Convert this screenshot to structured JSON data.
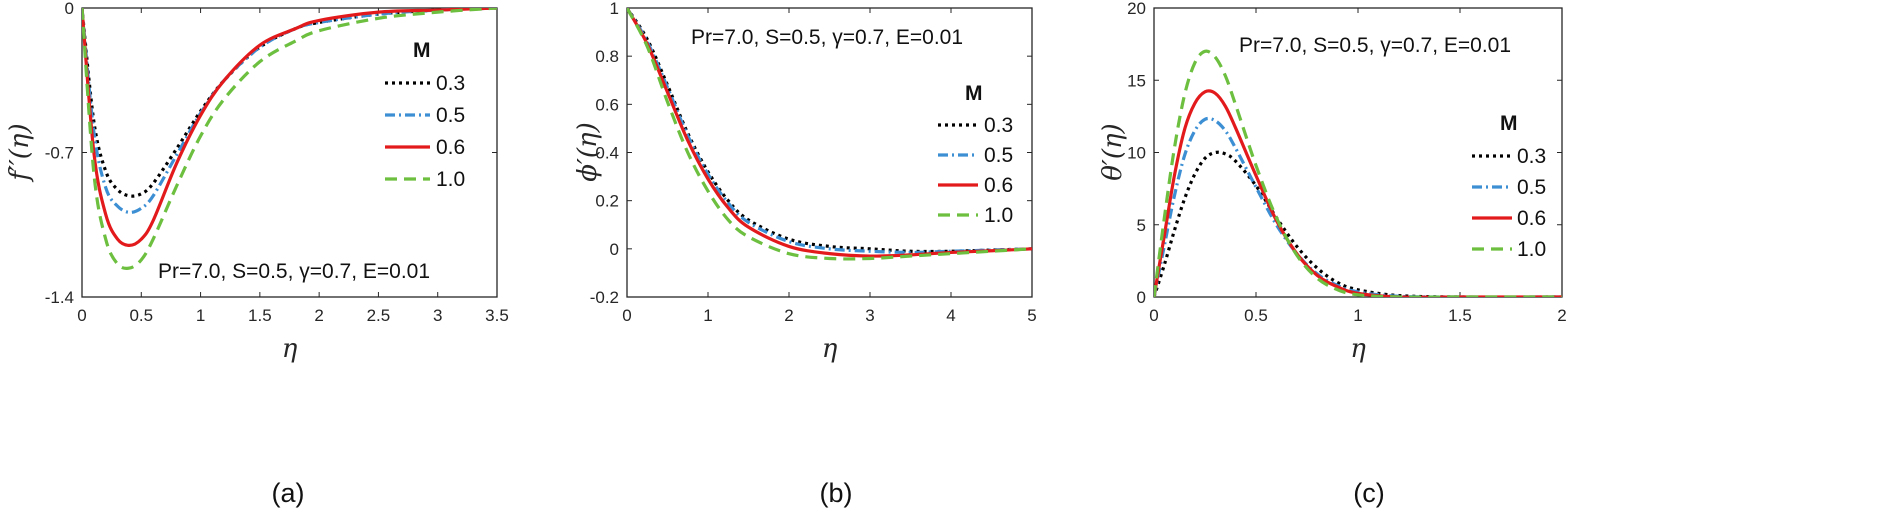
{
  "chart_data": [
    {
      "type": "line",
      "panel_label": "(a)",
      "xlabel": "η",
      "ylabel": "f′′(η)",
      "xlim": [
        0,
        3.5
      ],
      "ylim": [
        -1.4,
        0
      ],
      "xticks": [
        "0",
        "0.5",
        "1",
        "1.5",
        "2",
        "2.5",
        "3",
        "3.5"
      ],
      "yticks": [
        "0",
        "-0.7",
        "-1.4"
      ],
      "annotation": "Pr=7.0, S=0.5, γ=0.7, E=0.01",
      "legend_title": "M",
      "series": [
        {
          "name": "0.3",
          "x": [
            0,
            0.1,
            0.2,
            0.3,
            0.4,
            0.5,
            0.6,
            0.8,
            1.0,
            1.2,
            1.5,
            1.8,
            2.0,
            2.5,
            3.0,
            3.5
          ],
          "values": [
            0,
            -0.55,
            -0.79,
            -0.88,
            -0.91,
            -0.9,
            -0.85,
            -0.68,
            -0.5,
            -0.35,
            -0.19,
            -0.1,
            -0.07,
            -0.03,
            -0.01,
            0
          ]
        },
        {
          "name": "0.5",
          "x": [
            0,
            0.1,
            0.2,
            0.3,
            0.4,
            0.5,
            0.6,
            0.8,
            1.0,
            1.2,
            1.5,
            1.8,
            2.0,
            2.5,
            3.0,
            3.5
          ],
          "values": [
            0,
            -0.6,
            -0.87,
            -0.96,
            -0.99,
            -0.97,
            -0.91,
            -0.71,
            -0.51,
            -0.35,
            -0.19,
            -0.1,
            -0.07,
            -0.03,
            -0.01,
            0
          ]
        },
        {
          "name": "0.6",
          "x": [
            0,
            0.1,
            0.2,
            0.3,
            0.4,
            0.5,
            0.6,
            0.8,
            1.0,
            1.2,
            1.5,
            1.8,
            2.0,
            2.5,
            3.0,
            3.5
          ],
          "values": [
            0,
            -0.7,
            -1.0,
            -1.12,
            -1.15,
            -1.12,
            -1.03,
            -0.75,
            -0.52,
            -0.35,
            -0.18,
            -0.1,
            -0.06,
            -0.02,
            -0.01,
            0
          ]
        },
        {
          "name": "1.0",
          "x": [
            0,
            0.1,
            0.2,
            0.3,
            0.4,
            0.5,
            0.6,
            0.8,
            1.0,
            1.2,
            1.5,
            1.8,
            2.0,
            2.5,
            3.0,
            3.5
          ],
          "values": [
            0,
            -0.8,
            -1.12,
            -1.24,
            -1.26,
            -1.22,
            -1.12,
            -0.86,
            -0.62,
            -0.44,
            -0.26,
            -0.16,
            -0.11,
            -0.05,
            -0.02,
            0
          ]
        }
      ]
    },
    {
      "type": "line",
      "panel_label": "(b)",
      "xlabel": "η",
      "ylabel": "ϕ′(η)",
      "xlim": [
        0,
        5
      ],
      "ylim": [
        -0.2,
        1
      ],
      "xticks": [
        "0",
        "1",
        "2",
        "3",
        "4",
        "5"
      ],
      "yticks": [
        "-0.2",
        "0",
        "0.2",
        "0.4",
        "0.6",
        "0.8",
        "1"
      ],
      "annotation": "Pr=7.0, S=0.5, γ=0.7, E=0.01",
      "legend_title": "M",
      "series": [
        {
          "name": "0.3",
          "x": [
            0,
            0.25,
            0.5,
            0.75,
            1.0,
            1.25,
            1.5,
            2.0,
            2.5,
            3.0,
            3.5,
            4.0,
            4.5,
            5.0
          ],
          "values": [
            1,
            0.87,
            0.68,
            0.48,
            0.32,
            0.2,
            0.12,
            0.04,
            0.01,
            0,
            -0.01,
            -0.01,
            -0.005,
            0
          ]
        },
        {
          "name": "0.5",
          "x": [
            0,
            0.25,
            0.5,
            0.75,
            1.0,
            1.25,
            1.5,
            2.0,
            2.5,
            3.0,
            3.5,
            4.0,
            4.5,
            5.0
          ],
          "values": [
            1,
            0.86,
            0.67,
            0.47,
            0.31,
            0.19,
            0.11,
            0.03,
            0,
            -0.01,
            -0.015,
            -0.01,
            -0.005,
            0
          ]
        },
        {
          "name": "0.6",
          "x": [
            0,
            0.25,
            0.5,
            0.75,
            1.0,
            1.25,
            1.5,
            2.0,
            2.5,
            3.0,
            3.5,
            4.0,
            4.5,
            5.0
          ],
          "values": [
            1,
            0.85,
            0.65,
            0.45,
            0.29,
            0.17,
            0.09,
            0.01,
            -0.02,
            -0.03,
            -0.025,
            -0.015,
            -0.008,
            0
          ]
        },
        {
          "name": "1.0",
          "x": [
            0,
            0.25,
            0.5,
            0.75,
            1.0,
            1.25,
            1.5,
            2.0,
            2.5,
            3.0,
            3.5,
            4.0,
            4.5,
            5.0
          ],
          "values": [
            1,
            0.84,
            0.61,
            0.4,
            0.24,
            0.12,
            0.05,
            -0.02,
            -0.04,
            -0.04,
            -0.03,
            -0.02,
            -0.01,
            0
          ]
        }
      ]
    },
    {
      "type": "line",
      "panel_label": "(c)",
      "xlabel": "η",
      "ylabel": "θ′(η)",
      "xlim": [
        0,
        2
      ],
      "ylim": [
        0,
        20
      ],
      "xticks": [
        "0",
        "0.5",
        "1",
        "1.5",
        "2"
      ],
      "yticks": [
        "0",
        "5",
        "10",
        "15",
        "20"
      ],
      "annotation": "Pr=7.0, S=0.5, γ=0.7, E=0.01",
      "legend_title": "M",
      "series": [
        {
          "name": "0.3",
          "x": [
            0,
            0.05,
            0.1,
            0.15,
            0.2,
            0.25,
            0.3,
            0.35,
            0.4,
            0.5,
            0.6,
            0.7,
            0.8,
            0.9,
            1.0,
            1.2,
            1.5,
            2.0
          ],
          "values": [
            0,
            2.2,
            4.6,
            6.8,
            8.5,
            9.6,
            10.0,
            9.9,
            9.4,
            7.7,
            5.5,
            3.5,
            2.0,
            1.0,
            0.5,
            0.1,
            0,
            0
          ]
        },
        {
          "name": "0.5",
          "x": [
            0,
            0.05,
            0.1,
            0.15,
            0.2,
            0.25,
            0.3,
            0.35,
            0.4,
            0.5,
            0.6,
            0.7,
            0.8,
            0.9,
            1.0,
            1.2,
            1.5,
            2.0
          ],
          "values": [
            0,
            3.5,
            7.0,
            9.8,
            11.5,
            12.3,
            12.2,
            11.5,
            10.3,
            7.6,
            5.0,
            3.0,
            1.6,
            0.8,
            0.35,
            0.05,
            0,
            0
          ]
        },
        {
          "name": "0.6",
          "x": [
            0,
            0.05,
            0.1,
            0.15,
            0.2,
            0.25,
            0.3,
            0.35,
            0.4,
            0.5,
            0.6,
            0.7,
            0.8,
            0.9,
            1.0,
            1.2,
            1.5,
            2.0
          ],
          "values": [
            0,
            4.2,
            8.4,
            11.6,
            13.4,
            14.2,
            14.1,
            13.2,
            11.7,
            8.4,
            5.3,
            3.0,
            1.5,
            0.7,
            0.25,
            0,
            0,
            0
          ]
        },
        {
          "name": "1.0",
          "x": [
            0,
            0.05,
            0.1,
            0.15,
            0.2,
            0.25,
            0.3,
            0.35,
            0.4,
            0.5,
            0.6,
            0.7,
            0.8,
            0.9,
            1.0,
            1.2,
            1.5,
            2.0
          ],
          "values": [
            0,
            5.4,
            10.3,
            14.0,
            16.2,
            17.0,
            16.6,
            15.3,
            13.3,
            9.1,
            5.5,
            2.9,
            1.3,
            0.5,
            0.15,
            0,
            0,
            0
          ]
        }
      ]
    }
  ],
  "series_colors": [
    "#000000",
    "#3d8fd4",
    "#e31a1c",
    "#6cbf3f"
  ],
  "series_dashes": [
    "3,4",
    "10,4,2,4",
    "",
    "12,7"
  ]
}
